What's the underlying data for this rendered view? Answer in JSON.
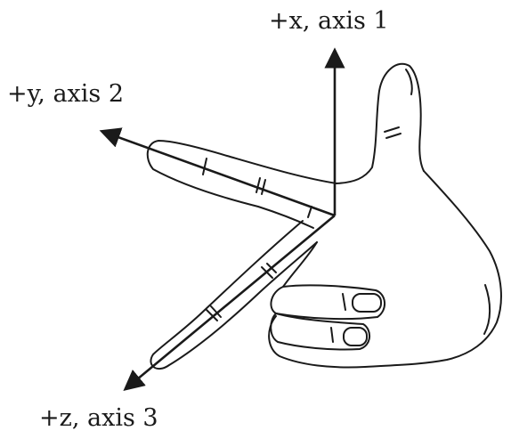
{
  "diagram": {
    "axes": [
      {
        "id": "x",
        "label": "+x, axis 1"
      },
      {
        "id": "y",
        "label": "+y, axis 2"
      },
      {
        "id": "z",
        "label": "+z, axis 3"
      }
    ],
    "colors": {
      "ink": "#1a1a1a",
      "background": "#ffffff"
    }
  }
}
